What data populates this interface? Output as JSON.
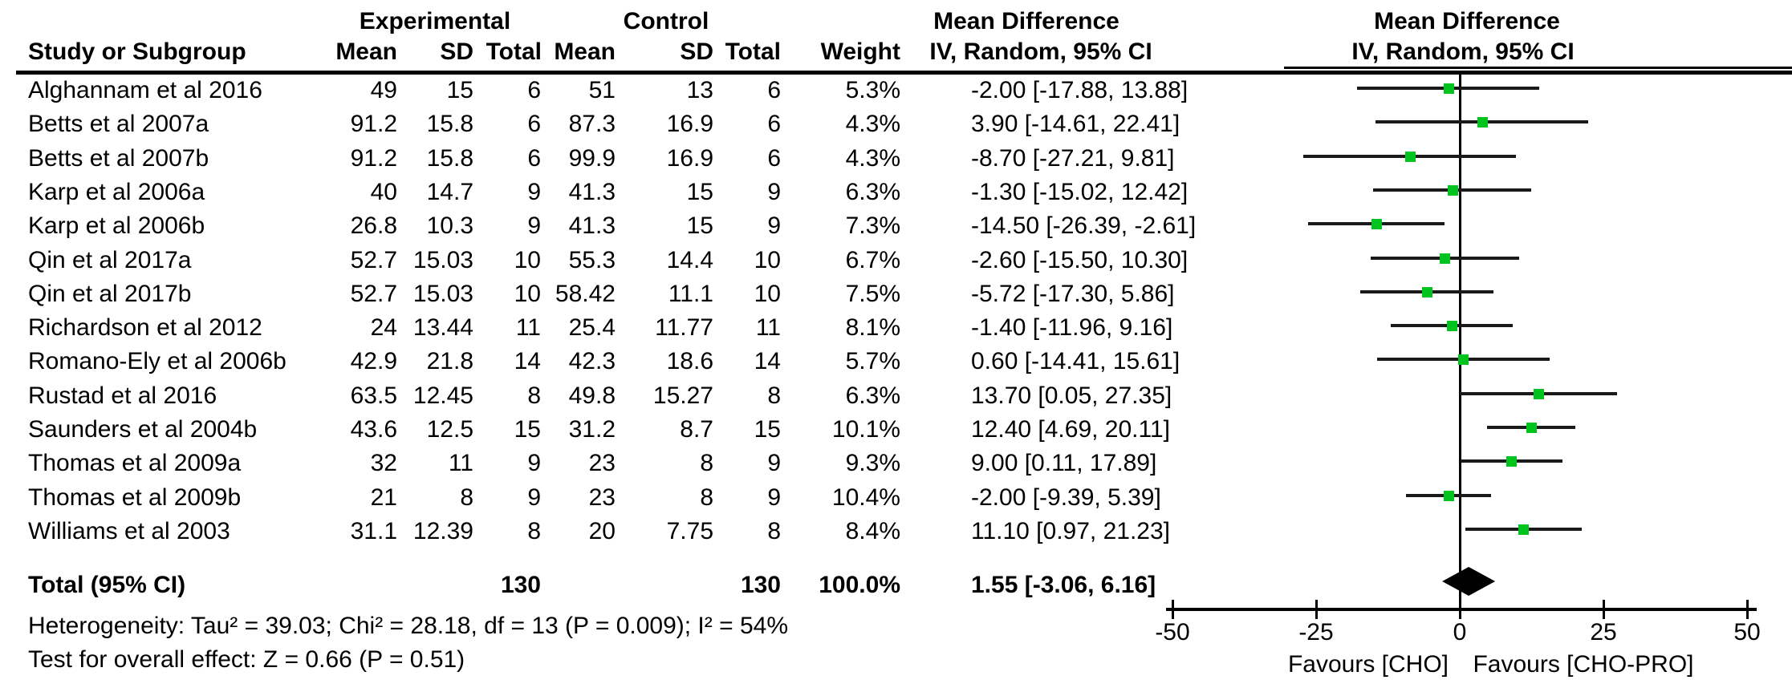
{
  "header": {
    "group_experimental": "Experimental",
    "group_control": "Control",
    "col_study": "Study or Subgroup",
    "col_mean": "Mean",
    "col_sd": "SD",
    "col_total": "Total",
    "col_weight": "Weight",
    "col_md_left_line1": "Mean Difference",
    "col_md_left_line2": "IV, Random, 95% CI",
    "col_md_right_line1": "Mean Difference",
    "col_md_right_line2": "IV, Random, 95% CI"
  },
  "footnotes": {
    "heterogeneity": "Heterogeneity: Tau² = 39.03; Chi² = 28.18, df = 13 (P = 0.009); I² = 54%",
    "overall_effect": "Test for overall effect: Z = 0.66 (P = 0.51)"
  },
  "colors": {
    "marker_green": "#00C41E",
    "line_black": "#1a1a1a",
    "diamond_black": "#000000"
  },
  "chart_data": {
    "type": "forest",
    "effect_measure": "Mean Difference",
    "model": "IV, Random, 95% CI",
    "xlim": [
      -50,
      50
    ],
    "x_ticks": [
      -50,
      -25,
      0,
      25,
      50
    ],
    "favours_left": "Favours [CHO]",
    "favours_right": "Favours [CHO-PRO]",
    "studies": [
      {
        "name": "Alghannam et al 2016",
        "exp_mean": "49",
        "exp_sd": "15",
        "exp_total": "6",
        "ctrl_mean": "51",
        "ctrl_sd": "13",
        "ctrl_total": "6",
        "weight": "5.3%",
        "ci_label": "-2.00 [-17.88, 13.88]",
        "md": -2.0,
        "ci_low": -17.88,
        "ci_high": 13.88
      },
      {
        "name": "Betts et al 2007a",
        "exp_mean": "91.2",
        "exp_sd": "15.8",
        "exp_total": "6",
        "ctrl_mean": "87.3",
        "ctrl_sd": "16.9",
        "ctrl_total": "6",
        "weight": "4.3%",
        "ci_label": "3.90 [-14.61, 22.41]",
        "md": 3.9,
        "ci_low": -14.61,
        "ci_high": 22.41
      },
      {
        "name": "Betts et al 2007b",
        "exp_mean": "91.2",
        "exp_sd": "15.8",
        "exp_total": "6",
        "ctrl_mean": "99.9",
        "ctrl_sd": "16.9",
        "ctrl_total": "6",
        "weight": "4.3%",
        "ci_label": "-8.70 [-27.21, 9.81]",
        "md": -8.7,
        "ci_low": -27.21,
        "ci_high": 9.81
      },
      {
        "name": "Karp et al 2006a",
        "exp_mean": "40",
        "exp_sd": "14.7",
        "exp_total": "9",
        "ctrl_mean": "41.3",
        "ctrl_sd": "15",
        "ctrl_total": "9",
        "weight": "6.3%",
        "ci_label": "-1.30 [-15.02, 12.42]",
        "md": -1.3,
        "ci_low": -15.02,
        "ci_high": 12.42
      },
      {
        "name": "Karp et al 2006b",
        "exp_mean": "26.8",
        "exp_sd": "10.3",
        "exp_total": "9",
        "ctrl_mean": "41.3",
        "ctrl_sd": "15",
        "ctrl_total": "9",
        "weight": "7.3%",
        "ci_label": "-14.50 [-26.39, -2.61]",
        "md": -14.5,
        "ci_low": -26.39,
        "ci_high": -2.61
      },
      {
        "name": "Qin et al 2017a",
        "exp_mean": "52.7",
        "exp_sd": "15.03",
        "exp_total": "10",
        "ctrl_mean": "55.3",
        "ctrl_sd": "14.4",
        "ctrl_total": "10",
        "weight": "6.7%",
        "ci_label": "-2.60 [-15.50, 10.30]",
        "md": -2.6,
        "ci_low": -15.5,
        "ci_high": 10.3
      },
      {
        "name": "Qin et al 2017b",
        "exp_mean": "52.7",
        "exp_sd": "15.03",
        "exp_total": "10",
        "ctrl_mean": "58.42",
        "ctrl_sd": "11.1",
        "ctrl_total": "10",
        "weight": "7.5%",
        "ci_label": "-5.72 [-17.30, 5.86]",
        "md": -5.72,
        "ci_low": -17.3,
        "ci_high": 5.86
      },
      {
        "name": "Richardson et al 2012",
        "exp_mean": "24",
        "exp_sd": "13.44",
        "exp_total": "11",
        "ctrl_mean": "25.4",
        "ctrl_sd": "11.77",
        "ctrl_total": "11",
        "weight": "8.1%",
        "ci_label": "-1.40 [-11.96, 9.16]",
        "md": -1.4,
        "ci_low": -11.96,
        "ci_high": 9.16
      },
      {
        "name": "Romano-Ely et al 2006b",
        "exp_mean": "42.9",
        "exp_sd": "21.8",
        "exp_total": "14",
        "ctrl_mean": "42.3",
        "ctrl_sd": "18.6",
        "ctrl_total": "14",
        "weight": "5.7%",
        "ci_label": "0.60 [-14.41, 15.61]",
        "md": 0.6,
        "ci_low": -14.41,
        "ci_high": 15.61
      },
      {
        "name": "Rustad et al 2016",
        "exp_mean": "63.5",
        "exp_sd": "12.45",
        "exp_total": "8",
        "ctrl_mean": "49.8",
        "ctrl_sd": "15.27",
        "ctrl_total": "8",
        "weight": "6.3%",
        "ci_label": "13.70 [0.05, 27.35]",
        "md": 13.7,
        "ci_low": 0.05,
        "ci_high": 27.35
      },
      {
        "name": "Saunders et al 2004b",
        "exp_mean": "43.6",
        "exp_sd": "12.5",
        "exp_total": "15",
        "ctrl_mean": "31.2",
        "ctrl_sd": "8.7",
        "ctrl_total": "15",
        "weight": "10.1%",
        "ci_label": "12.40 [4.69, 20.11]",
        "md": 12.4,
        "ci_low": 4.69,
        "ci_high": 20.11
      },
      {
        "name": "Thomas et al 2009a",
        "exp_mean": "32",
        "exp_sd": "11",
        "exp_total": "9",
        "ctrl_mean": "23",
        "ctrl_sd": "8",
        "ctrl_total": "9",
        "weight": "9.3%",
        "ci_label": "9.00 [0.11, 17.89]",
        "md": 9.0,
        "ci_low": 0.11,
        "ci_high": 17.89
      },
      {
        "name": "Thomas et al 2009b",
        "exp_mean": "21",
        "exp_sd": "8",
        "exp_total": "9",
        "ctrl_mean": "23",
        "ctrl_sd": "8",
        "ctrl_total": "9",
        "weight": "10.4%",
        "ci_label": "-2.00 [-9.39, 5.39]",
        "md": -2.0,
        "ci_low": -9.39,
        "ci_high": 5.39
      },
      {
        "name": "Williams et al 2003",
        "exp_mean": "31.1",
        "exp_sd": "12.39",
        "exp_total": "8",
        "ctrl_mean": "20",
        "ctrl_sd": "7.75",
        "ctrl_total": "8",
        "weight": "8.4%",
        "ci_label": "11.10 [0.97, 21.23]",
        "md": 11.1,
        "ci_low": 0.97,
        "ci_high": 21.23
      }
    ],
    "total": {
      "label": "Total (95% CI)",
      "exp_total": "130",
      "ctrl_total": "130",
      "weight": "100.0%",
      "ci_label": "1.55 [-3.06, 6.16]",
      "md": 1.55,
      "ci_low": -3.06,
      "ci_high": 6.16
    }
  }
}
